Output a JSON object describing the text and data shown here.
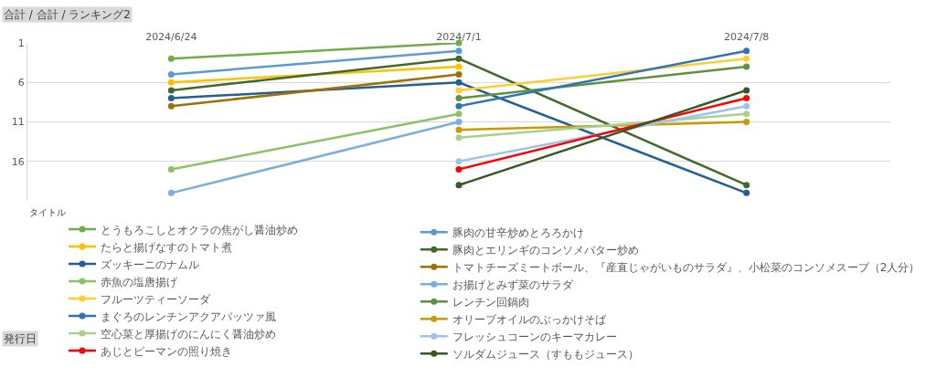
{
  "chart_data": {
    "type": "line",
    "categories": [
      "2024/6/24",
      "2024/7/1",
      "2024/7/8"
    ],
    "ylim": [
      21,
      1
    ],
    "yticks": [
      1,
      6,
      11,
      16
    ],
    "grid": "y",
    "marker": "circle",
    "line_style": "solid",
    "legend": "bottom",
    "legend_title": "タイトル",
    "annotations": [
      "合計 / 合計 / ランキング2",
      "発行日"
    ],
    "series": [
      {
        "name": "とうもろこしとオクラの焦がし醤油炒め",
        "color": "#70ad47",
        "values": [
          3,
          1,
          null
        ]
      },
      {
        "name": "豚肉の甘辛炒めとろろかけ",
        "color": "#5b9bd5",
        "values": [
          5,
          2,
          null
        ]
      },
      {
        "name": "たらと揚げなすのトマト煮",
        "color": "#ffc000",
        "values": [
          6,
          4,
          null
        ]
      },
      {
        "name": "豚肉とエリンギのコンソメバター炒め",
        "color": "#43682b",
        "values": [
          7,
          3,
          19
        ]
      },
      {
        "name": "ズッキーニのナムル",
        "color": "#255e91",
        "values": [
          8,
          6,
          20
        ]
      },
      {
        "name": "トマトチーズミートボール、『産直じゃがいものサラダ』、小松菜のコンソメスープ（2人分）",
        "color": "#9e7102",
        "values": [
          9,
          5,
          null
        ]
      },
      {
        "name": "赤魚の塩唐揚げ",
        "color": "#8cc168",
        "values": [
          17,
          10,
          null
        ]
      },
      {
        "name": "お揚げとみず菜のサラダ",
        "color": "#7cafdd",
        "values": [
          20,
          11,
          null
        ]
      },
      {
        "name": "フルーツティーソーダ",
        "color": "#ffcd33",
        "values": [
          null,
          7,
          3
        ]
      },
      {
        "name": "レンチン回鍋肉",
        "color": "#5f913a",
        "values": [
          null,
          8,
          4
        ]
      },
      {
        "name": "まぐろのレンチンアクアパッツァ風",
        "color": "#2e75b6",
        "values": [
          null,
          9,
          2
        ]
      },
      {
        "name": "オリーブオイルのぶっかけそば",
        "color": "#c99a06",
        "values": [
          null,
          12,
          11
        ]
      },
      {
        "name": "空心菜と厚揚げのにんにく醤油炒め",
        "color": "#a9d18e",
        "values": [
          null,
          13,
          10
        ]
      },
      {
        "name": "フレッシュコーンのキーマカレー",
        "color": "#9dc3e6",
        "values": [
          null,
          16,
          9
        ]
      },
      {
        "name": "あじとピーマンの照り焼き",
        "color": "#ff0000",
        "values": [
          null,
          17,
          8
        ]
      },
      {
        "name": "ソルダムジュース（すももジュース）",
        "color": "#375623",
        "values": [
          null,
          19,
          7
        ]
      }
    ]
  }
}
